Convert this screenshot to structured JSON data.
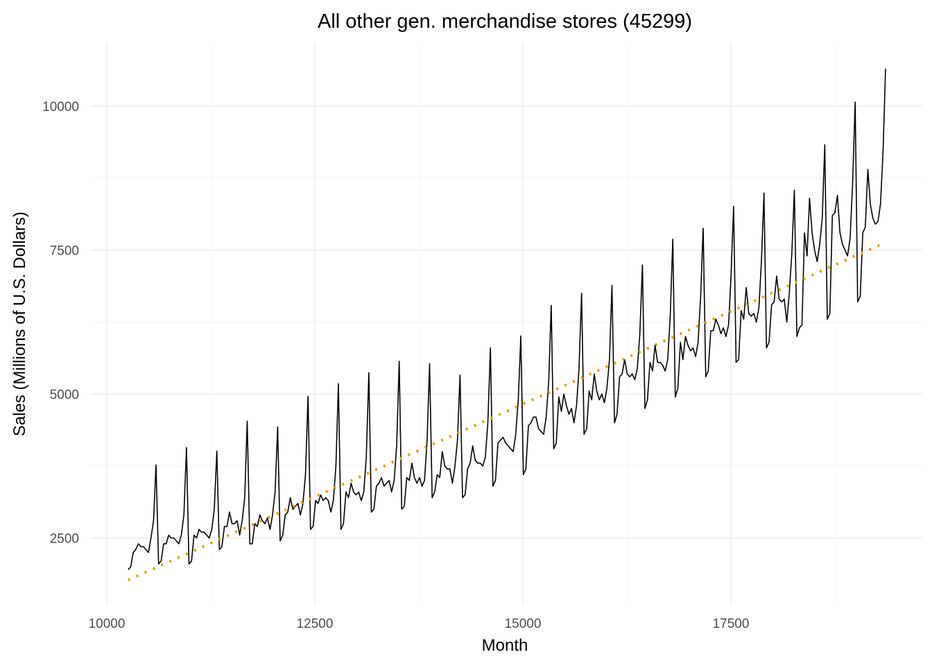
{
  "chart_data": {
    "type": "line",
    "title": "All other gen. merchandise stores (45299)",
    "xlabel": "Month",
    "ylabel": "Sales (Millions of U.S. Dollars)",
    "xlim": [
      9800,
      19800
    ],
    "ylim": [
      1300,
      10900
    ],
    "x_ticks": [
      10000,
      12500,
      15000,
      17500
    ],
    "x_tick_labels": [
      "10000",
      "12500",
      "15000",
      "17500"
    ],
    "x_minor_ticks": [
      11250,
      13750,
      16250,
      18750
    ],
    "y_ticks": [
      2500,
      5000,
      7500,
      10000
    ],
    "y_tick_labels": [
      "2500",
      "5000",
      "7500",
      "10000"
    ],
    "y_minor_ticks": [
      3750,
      6250,
      8750
    ],
    "grid": true,
    "x_start": 10257,
    "x_step": 30.44,
    "series": [
      {
        "name": "Sales",
        "color": "#000000",
        "style": "solid",
        "yearly_monthly_values": [
          [
            1950,
            2000,
            2250,
            2300,
            2400,
            2350,
            2350,
            2300,
            2250,
            2500,
            2800,
            3770
          ],
          [
            2050,
            2100,
            2400,
            2400,
            2550,
            2500,
            2500,
            2450,
            2400,
            2550,
            2900,
            4070
          ],
          [
            2050,
            2100,
            2550,
            2500,
            2650,
            2600,
            2600,
            2550,
            2500,
            2650,
            3000,
            4010
          ],
          [
            2300,
            2350,
            2700,
            2700,
            2950,
            2750,
            2750,
            2800,
            2550,
            2800,
            3200,
            4530
          ],
          [
            2400,
            2400,
            2750,
            2700,
            2900,
            2800,
            2750,
            2850,
            2650,
            2900,
            3300,
            4430
          ],
          [
            2450,
            2550,
            2900,
            2950,
            3200,
            3000,
            3050,
            3100,
            2900,
            3100,
            3600,
            4960
          ],
          [
            2650,
            2700,
            3150,
            3100,
            3250,
            3150,
            3200,
            3150,
            2950,
            3150,
            3750,
            5180
          ],
          [
            2650,
            2750,
            3300,
            3200,
            3450,
            3300,
            3250,
            3300,
            3150,
            3300,
            3900,
            5370
          ],
          [
            2950,
            3000,
            3400,
            3450,
            3550,
            3400,
            3450,
            3500,
            3300,
            3500,
            4100,
            5570
          ],
          [
            3000,
            3050,
            3550,
            3500,
            3800,
            3550,
            3450,
            3550,
            3400,
            3500,
            4200,
            5530
          ],
          [
            3200,
            3300,
            3600,
            3550,
            4000,
            3750,
            3700,
            3700,
            3450,
            3750,
            4200,
            5330
          ],
          [
            3200,
            3250,
            3700,
            3800,
            4100,
            3850,
            3800,
            3800,
            3750,
            3900,
            4500,
            5800
          ],
          [
            3400,
            3500,
            4150,
            4200,
            4250,
            4150,
            4100,
            4050,
            4000,
            4300,
            4900,
            6010
          ],
          [
            3600,
            3700,
            4450,
            4500,
            4600,
            4600,
            4400,
            4350,
            4300,
            4600,
            5200,
            6540
          ],
          [
            4050,
            4150,
            4950,
            4700,
            5000,
            4800,
            4650,
            4750,
            4500,
            4800,
            5450,
            6750
          ],
          [
            4300,
            4400,
            5050,
            4900,
            5350,
            5050,
            4900,
            5000,
            4850,
            5100,
            5600,
            6890
          ],
          [
            4500,
            4650,
            5300,
            5350,
            5600,
            5350,
            5300,
            5350,
            5250,
            5450,
            6050,
            7240
          ],
          [
            4750,
            4900,
            5550,
            5400,
            5850,
            5550,
            5550,
            5500,
            5400,
            5600,
            6350,
            7690
          ],
          [
            4950,
            5100,
            5900,
            5600,
            6000,
            5850,
            5750,
            5800,
            5650,
            5900,
            6700,
            7880
          ],
          [
            5300,
            5400,
            6100,
            6100,
            6300,
            6200,
            6050,
            6150,
            6000,
            6200,
            7050,
            8260
          ],
          [
            5550,
            5600,
            6450,
            6300,
            6850,
            6400,
            6350,
            6400,
            6250,
            6500,
            7300,
            8490
          ],
          [
            5800,
            5900,
            6550,
            6600,
            7050,
            6650,
            6600,
            6650,
            6250,
            6750,
            7450,
            8540
          ],
          [
            6000,
            6150,
            6200,
            7800,
            7400,
            8400,
            7800,
            7500,
            7300,
            7600,
            8050,
            9330
          ],
          [
            6300,
            6400,
            8100,
            8150,
            8450,
            7800,
            7600,
            7500,
            7400,
            7700,
            8650,
            10070
          ],
          [
            6600,
            6700,
            7800,
            7900,
            8900,
            8300,
            8050,
            7950,
            8000,
            8300,
            9200,
            10650
          ]
        ]
      },
      {
        "name": "Trend",
        "color": "#E69F00",
        "style": "dotted",
        "x": [
          10257,
          19337
        ],
        "y": [
          1770,
          7620
        ]
      }
    ]
  }
}
